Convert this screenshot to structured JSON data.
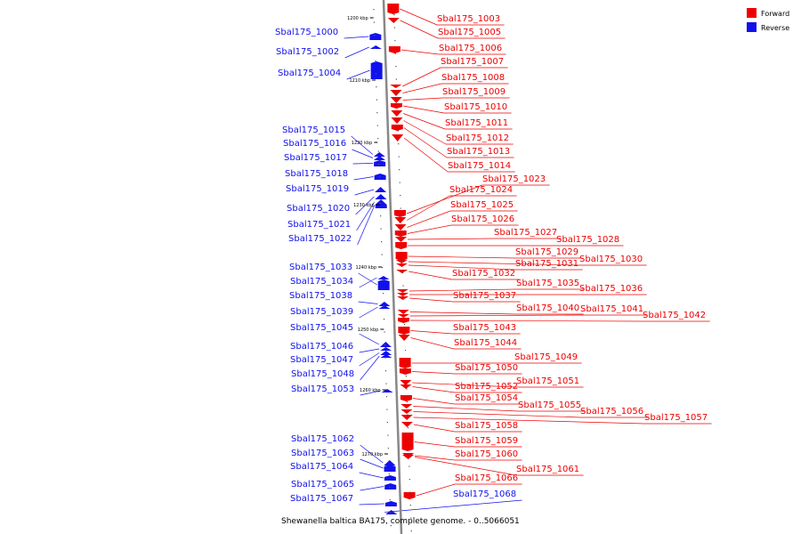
{
  "legend": {
    "forward": "Forward",
    "reverse": "Reverse"
  },
  "colors": {
    "forward": "#ee0000",
    "reverse": "#1111ee",
    "axis": "#888888"
  },
  "caption": "Shewanella baltica BA175, complete genome. - 0..5066051",
  "ticks": [
    "1200 kbp",
    "1210 kbp",
    "1220 kbp",
    "1230 kbp",
    "1240 kbp",
    "1250 kbp",
    "1260 kbp",
    "1270 kbp"
  ],
  "genes": [
    {
      "id": "Sbal175_1000",
      "strand": "reverse"
    },
    {
      "id": "Sbal175_1002",
      "strand": "reverse"
    },
    {
      "id": "Sbal175_1004",
      "strand": "reverse"
    },
    {
      "id": "Sbal175_1003",
      "strand": "forward"
    },
    {
      "id": "Sbal175_1005",
      "strand": "forward"
    },
    {
      "id": "Sbal175_1006",
      "strand": "forward"
    },
    {
      "id": "Sbal175_1007",
      "strand": "forward"
    },
    {
      "id": "Sbal175_1008",
      "strand": "forward"
    },
    {
      "id": "Sbal175_1009",
      "strand": "forward"
    },
    {
      "id": "Sbal175_1010",
      "strand": "forward"
    },
    {
      "id": "Sbal175_1011",
      "strand": "forward"
    },
    {
      "id": "Sbal175_1012",
      "strand": "forward"
    },
    {
      "id": "Sbal175_1013",
      "strand": "forward"
    },
    {
      "id": "Sbal175_1014",
      "strand": "forward"
    },
    {
      "id": "Sbal175_1015",
      "strand": "reverse"
    },
    {
      "id": "Sbal175_1016",
      "strand": "reverse"
    },
    {
      "id": "Sbal175_1017",
      "strand": "reverse"
    },
    {
      "id": "Sbal175_1018",
      "strand": "reverse"
    },
    {
      "id": "Sbal175_1019",
      "strand": "reverse"
    },
    {
      "id": "Sbal175_1020",
      "strand": "reverse"
    },
    {
      "id": "Sbal175_1021",
      "strand": "reverse"
    },
    {
      "id": "Sbal175_1022",
      "strand": "reverse"
    },
    {
      "id": "Sbal175_1023",
      "strand": "forward"
    },
    {
      "id": "Sbal175_1024",
      "strand": "forward"
    },
    {
      "id": "Sbal175_1025",
      "strand": "forward"
    },
    {
      "id": "Sbal175_1026",
      "strand": "forward"
    },
    {
      "id": "Sbal175_1027",
      "strand": "forward"
    },
    {
      "id": "Sbal175_1028",
      "strand": "forward"
    },
    {
      "id": "Sbal175_1029",
      "strand": "forward"
    },
    {
      "id": "Sbal175_1030",
      "strand": "forward"
    },
    {
      "id": "Sbal175_1031",
      "strand": "forward"
    },
    {
      "id": "Sbal175_1032",
      "strand": "forward"
    },
    {
      "id": "Sbal175_1033",
      "strand": "reverse"
    },
    {
      "id": "Sbal175_1034",
      "strand": "reverse"
    },
    {
      "id": "Sbal175_1038",
      "strand": "reverse"
    },
    {
      "id": "Sbal175_1039",
      "strand": "reverse"
    },
    {
      "id": "Sbal175_1035",
      "strand": "forward"
    },
    {
      "id": "Sbal175_1036",
      "strand": "forward"
    },
    {
      "id": "Sbal175_1037",
      "strand": "forward"
    },
    {
      "id": "Sbal175_1040",
      "strand": "forward"
    },
    {
      "id": "Sbal175_1041",
      "strand": "forward"
    },
    {
      "id": "Sbal175_1042",
      "strand": "forward"
    },
    {
      "id": "Sbal175_1043",
      "strand": "forward"
    },
    {
      "id": "Sbal175_1044",
      "strand": "forward"
    },
    {
      "id": "Sbal175_1045",
      "strand": "reverse"
    },
    {
      "id": "Sbal175_1046",
      "strand": "reverse"
    },
    {
      "id": "Sbal175_1047",
      "strand": "reverse"
    },
    {
      "id": "Sbal175_1048",
      "strand": "reverse"
    },
    {
      "id": "Sbal175_1053",
      "strand": "reverse"
    },
    {
      "id": "Sbal175_1049",
      "strand": "forward"
    },
    {
      "id": "Sbal175_1050",
      "strand": "forward"
    },
    {
      "id": "Sbal175_1051",
      "strand": "forward"
    },
    {
      "id": "Sbal175_1052",
      "strand": "forward"
    },
    {
      "id": "Sbal175_1054",
      "strand": "forward"
    },
    {
      "id": "Sbal175_1055",
      "strand": "forward"
    },
    {
      "id": "Sbal175_1056",
      "strand": "forward"
    },
    {
      "id": "Sbal175_1057",
      "strand": "forward"
    },
    {
      "id": "Sbal175_1058",
      "strand": "forward"
    },
    {
      "id": "Sbal175_1059",
      "strand": "forward"
    },
    {
      "id": "Sbal175_1060",
      "strand": "forward"
    },
    {
      "id": "Sbal175_1061",
      "strand": "forward"
    },
    {
      "id": "Sbal175_1062",
      "strand": "reverse"
    },
    {
      "id": "Sbal175_1063",
      "strand": "reverse"
    },
    {
      "id": "Sbal175_1064",
      "strand": "reverse"
    },
    {
      "id": "Sbal175_1065",
      "strand": "reverse"
    },
    {
      "id": "Sbal175_1067",
      "strand": "reverse"
    },
    {
      "id": "Sbal175_1066",
      "strand": "forward"
    },
    {
      "id": "Sbal175_1068",
      "strand": "reverse"
    }
  ]
}
